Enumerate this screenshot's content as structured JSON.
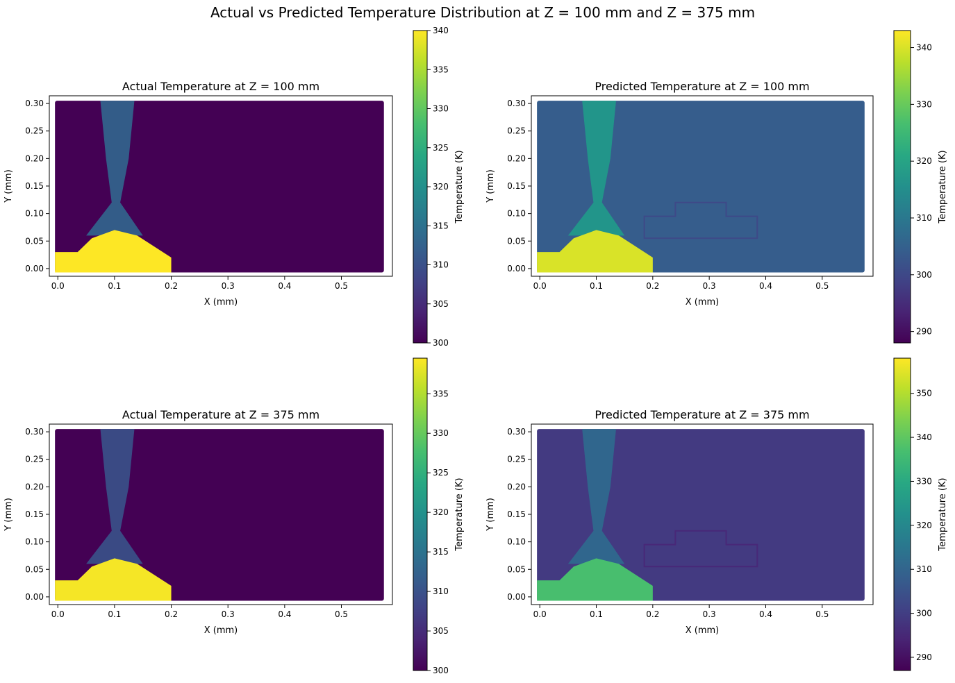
{
  "figure": {
    "suptitle": "Actual vs Predicted Temperature Distribution at Z = 100 mm and Z = 375 mm"
  },
  "chart_data": [
    {
      "type": "heatmap",
      "title": "Actual Temperature at Z = 100 mm",
      "xlabel": "X (mm)",
      "ylabel": "Y (mm)",
      "xlim": [
        -0.015,
        0.59
      ],
      "ylim": [
        -0.014,
        0.314
      ],
      "xticks": [
        "0.0",
        "0.1",
        "0.2",
        "0.3",
        "0.4",
        "0.5"
      ],
      "yticks": [
        "0.00",
        "0.05",
        "0.10",
        "0.15",
        "0.20",
        "0.25",
        "0.30"
      ],
      "colorbar": {
        "label": "Temperature (K)",
        "range": [
          300,
          340
        ],
        "ticks": [
          "300",
          "305",
          "310",
          "315",
          "320",
          "325",
          "330",
          "335",
          "340"
        ]
      },
      "background_temp": 300,
      "hot_region_temp": 340,
      "plume_temp": 313,
      "colormap": "viridis"
    },
    {
      "type": "heatmap",
      "title": "Predicted Temperature at Z = 100 mm",
      "xlabel": "X (mm)",
      "ylabel": "Y (mm)",
      "xlim": [
        -0.015,
        0.59
      ],
      "ylim": [
        -0.014,
        0.314
      ],
      "xticks": [
        "0.0",
        "0.1",
        "0.2",
        "0.3",
        "0.4",
        "0.5"
      ],
      "yticks": [
        "0.00",
        "0.05",
        "0.10",
        "0.15",
        "0.20",
        "0.25",
        "0.30"
      ],
      "colorbar": {
        "label": "Temperature (K)",
        "range": [
          288,
          343
        ],
        "ticks": [
          "290",
          "300",
          "310",
          "320",
          "330",
          "340"
        ]
      },
      "background_temp": 304,
      "hot_region_temp": 340,
      "plume_temp": 318,
      "colormap": "viridis"
    },
    {
      "type": "heatmap",
      "title": "Actual Temperature at Z = 375 mm",
      "xlabel": "X (mm)",
      "ylabel": "Y (mm)",
      "xlim": [
        -0.015,
        0.59
      ],
      "ylim": [
        -0.014,
        0.314
      ],
      "xticks": [
        "0.0",
        "0.1",
        "0.2",
        "0.3",
        "0.4",
        "0.5"
      ],
      "yticks": [
        "0.00",
        "0.05",
        "0.10",
        "0.15",
        "0.20",
        "0.25",
        "0.30"
      ],
      "colorbar": {
        "label": "Temperature (K)",
        "range": [
          300,
          339.5
        ],
        "ticks": [
          "300",
          "305",
          "310",
          "315",
          "320",
          "325",
          "330",
          "335"
        ]
      },
      "background_temp": 300,
      "hot_region_temp": 339,
      "plume_temp": 310,
      "colormap": "viridis"
    },
    {
      "type": "heatmap",
      "title": "Predicted Temperature at Z = 375 mm",
      "xlabel": "X (mm)",
      "ylabel": "Y (mm)",
      "xlim": [
        -0.015,
        0.59
      ],
      "ylim": [
        -0.014,
        0.314
      ],
      "xticks": [
        "0.0",
        "0.1",
        "0.2",
        "0.3",
        "0.4",
        "0.5"
      ],
      "yticks": [
        "0.00",
        "0.05",
        "0.10",
        "0.15",
        "0.20",
        "0.25",
        "0.30"
      ],
      "colorbar": {
        "label": "Temperature (K)",
        "range": [
          287,
          358
        ],
        "ticks": [
          "290",
          "300",
          "310",
          "320",
          "330",
          "340",
          "350"
        ]
      },
      "background_temp": 299,
      "hot_region_temp": 337,
      "plume_temp": 312,
      "colormap": "viridis"
    }
  ]
}
